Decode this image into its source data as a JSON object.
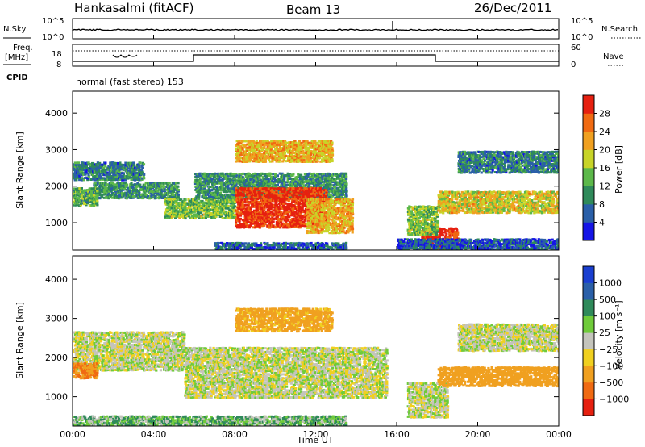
{
  "header": {
    "station": "Hankasalmi (fitACF)",
    "beam": "Beam 13",
    "date": "26/Dec/2011"
  },
  "noise_panel": {
    "left_label": "N.Sky",
    "right_label": "N.Search",
    "left_ticks": [
      "10^5",
      "10^0"
    ],
    "right_ticks": [
      "10^5",
      "10^0"
    ]
  },
  "freq_panel": {
    "left_label_top": "Freq.",
    "left_label_unit": "[MHz]",
    "right_label": "Nave",
    "left_ticks": [
      "18",
      "8"
    ],
    "right_ticks": [
      "60",
      "0"
    ]
  },
  "cpid": {
    "label": "CPID",
    "text": "normal (fast stereo) 153"
  },
  "colors": {
    "power": [
      "#1515e6",
      "#2a5fa8",
      "#2f8a5a",
      "#5cb84a",
      "#c8d428",
      "#f0a020",
      "#f06a12",
      "#e62010"
    ],
    "velocity": [
      "#1a3fd0",
      "#2a5fa8",
      "#2f8a5a",
      "#6fcb3a",
      "#c4c4bc",
      "#f0d020",
      "#f0a020",
      "#f06a12",
      "#e62010"
    ]
  },
  "chart_data": [
    {
      "type": "heatmap",
      "name": "power",
      "ylabel": "Slant Range [km]",
      "ylim": [
        250,
        4600
      ],
      "yticks": [
        "1000",
        "2000",
        "3000",
        "4000"
      ],
      "xlim": [
        0,
        24
      ],
      "colorbar": {
        "label": "Power [dB]",
        "ticks": [
          "4",
          "8",
          "12",
          "16",
          "20",
          "24",
          "28"
        ],
        "range": [
          0,
          30
        ]
      },
      "features": [
        {
          "t0": 0.0,
          "t1": 3.5,
          "r0": 2200,
          "r1": 2700,
          "v": 8
        },
        {
          "t0": 1.0,
          "t1": 5.2,
          "r0": 1700,
          "r1": 2150,
          "v": 10
        },
        {
          "t0": 0.0,
          "t1": 1.2,
          "r0": 1500,
          "r1": 2000,
          "v": 12
        },
        {
          "t0": 4.5,
          "t1": 8.0,
          "r0": 1150,
          "r1": 1700,
          "v": 14
        },
        {
          "t0": 6.0,
          "t1": 13.5,
          "r0": 1700,
          "r1": 2400,
          "v": 10
        },
        {
          "t0": 8.0,
          "t1": 12.5,
          "r0": 900,
          "r1": 2000,
          "v": 28
        },
        {
          "t0": 11.5,
          "t1": 13.8,
          "r0": 750,
          "r1": 1700,
          "v": 20
        },
        {
          "t0": 8.0,
          "t1": 12.8,
          "r0": 2700,
          "r1": 3300,
          "v": 20
        },
        {
          "t0": 7.0,
          "t1": 13.5,
          "r0": 300,
          "r1": 500,
          "v": 6
        },
        {
          "t0": 17.2,
          "t1": 19.0,
          "r0": 300,
          "r1": 900,
          "v": 28
        },
        {
          "t0": 16.5,
          "t1": 18.0,
          "r0": 700,
          "r1": 1500,
          "v": 14
        },
        {
          "t0": 18.0,
          "t1": 24.0,
          "r0": 1300,
          "r1": 1900,
          "v": 18
        },
        {
          "t0": 19.0,
          "t1": 24.0,
          "r0": 2400,
          "r1": 3000,
          "v": 8
        },
        {
          "t0": 16.0,
          "t1": 24.0,
          "r0": 300,
          "r1": 600,
          "v": 5
        }
      ]
    },
    {
      "type": "heatmap",
      "name": "velocity",
      "ylabel": "Slant Range [km]",
      "ylim": [
        250,
        4600
      ],
      "yticks": [
        "1000",
        "2000",
        "3000",
        "4000"
      ],
      "xlabel": "Time UT",
      "xticks": [
        "00:00",
        "04:00",
        "08:00",
        "12:00",
        "16:00",
        "20:00",
        "00:00"
      ],
      "xlim": [
        0,
        24
      ],
      "colorbar": {
        "label": "Velocity [m s⁻¹]",
        "ticks": [
          "1000",
          "500",
          "100",
          "25",
          "−25",
          "−100",
          "−500",
          "−1000"
        ]
      },
      "features": [
        {
          "t0": 0.0,
          "t1": 5.5,
          "r0": 1700,
          "r1": 2700,
          "v": 0
        },
        {
          "t0": 5.5,
          "t1": 15.5,
          "r0": 1000,
          "r1": 2300,
          "v": 0
        },
        {
          "t0": 8.0,
          "t1": 12.8,
          "r0": 2700,
          "r1": 3300,
          "v": -100
        },
        {
          "t0": 0.0,
          "t1": 1.2,
          "r0": 1500,
          "r1": 1900,
          "v": -300
        },
        {
          "t0": 16.5,
          "t1": 18.5,
          "r0": 500,
          "r1": 1400,
          "v": 0
        },
        {
          "t0": 18.0,
          "t1": 24.0,
          "r0": 1300,
          "r1": 1800,
          "v": -200
        },
        {
          "t0": 19.0,
          "t1": 24.0,
          "r0": 2200,
          "r1": 2900,
          "v": 0
        },
        {
          "t0": 0.0,
          "t1": 13.5,
          "r0": 300,
          "r1": 550,
          "v": 50
        }
      ]
    }
  ]
}
